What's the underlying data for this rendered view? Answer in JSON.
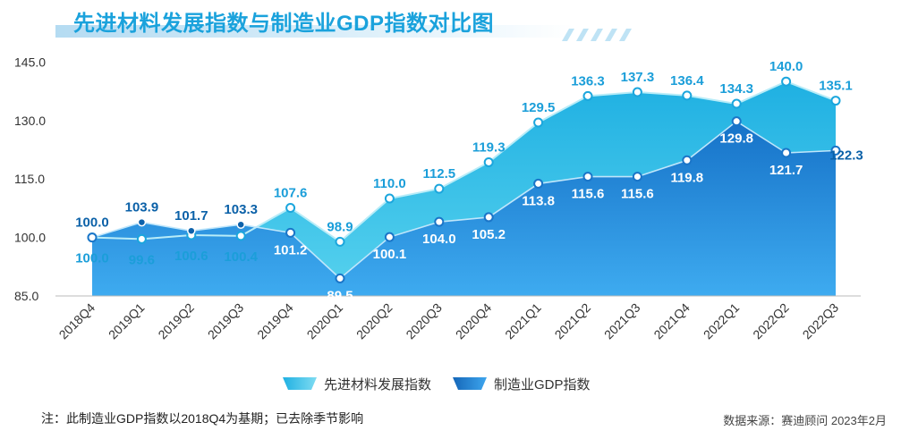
{
  "title": "先进材料发展指数与制造业GDP指数对比图",
  "note": "注：此制造业GDP指数以2018Q4为基期；已去除季节影响",
  "source": "数据来源：赛迪顾问 2023年2月",
  "colors": {
    "advanced_fill_top": "#21b6e6",
    "advanced_fill_bottom": "#47cceb",
    "manufacturing_fill_top": "#1a7fd1",
    "manufacturing_fill_bottom": "#3aa5ee",
    "advanced_label": "#1b9ed9",
    "manufacturing_label": "#0b61a8",
    "title": "#1aa2dc"
  },
  "chart_data": {
    "type": "area",
    "title": "先进材料发展指数与制造业GDP指数对比图",
    "categories": [
      "2018Q4",
      "2019Q1",
      "2019Q2",
      "2019Q3",
      "2019Q4",
      "2020Q1",
      "2020Q2",
      "2020Q3",
      "2020Q4",
      "2021Q1",
      "2021Q2",
      "2021Q3",
      "2021Q4",
      "2022Q1",
      "2022Q2",
      "2022Q3"
    ],
    "y_ticks": [
      "85.0",
      "100.0",
      "115.0",
      "130.0",
      "145.0"
    ],
    "ylim": [
      85,
      150
    ],
    "grid": false,
    "legend_position": "bottom",
    "series": [
      {
        "name": "先进材料发展指数",
        "values": [
          100.0,
          99.6,
          100.6,
          100.4,
          107.6,
          98.9,
          110.0,
          112.5,
          119.3,
          129.5,
          136.3,
          137.3,
          136.4,
          134.3,
          140.0,
          135.1
        ],
        "labels": [
          "100.0",
          "99.6",
          "100.6",
          "100.4",
          "107.6",
          "98.9",
          "110.0",
          "112.5",
          "119.3",
          "129.5",
          "136.3",
          "137.3",
          "136.4",
          "134.3",
          "140.0",
          "135.1"
        ]
      },
      {
        "name": "制造业GDP指数",
        "values": [
          100.0,
          103.9,
          101.7,
          103.3,
          101.2,
          89.5,
          100.1,
          104.0,
          105.2,
          113.8,
          115.6,
          115.6,
          119.8,
          129.8,
          121.7,
          122.3
        ],
        "labels": [
          "100.0",
          "103.9",
          "101.7",
          "103.3",
          "101.2",
          "89.5",
          "100.1",
          "104.0",
          "105.2",
          "113.8",
          "115.6",
          "115.6",
          "119.8",
          "129.8",
          "121.7",
          "122.3"
        ]
      }
    ]
  }
}
